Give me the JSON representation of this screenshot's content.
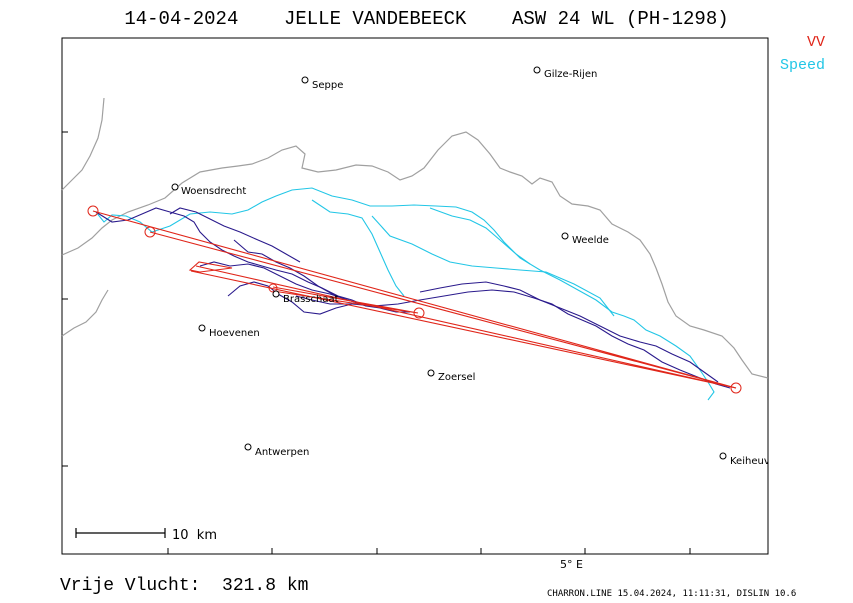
{
  "header": {
    "title": "14-04-2024    JELLE VANDEBEECK    ASW 24 WL (PH-1298)"
  },
  "legend": {
    "vv_label": "VV",
    "vv_color": "#e0261a",
    "speed_label": "Speed",
    "speed_color": "#22c6e6"
  },
  "places": [
    {
      "name": "Seppe"
    },
    {
      "name": "Gilze-Rijen"
    },
    {
      "name": "Woensdrecht"
    },
    {
      "name": "Weelde"
    },
    {
      "name": "Brasschaat"
    },
    {
      "name": "Hoevenen"
    },
    {
      "name": "Zoersel"
    },
    {
      "name": "Antwerpen"
    },
    {
      "name": "Keiheuvel"
    }
  ],
  "scale_bar": {
    "label": "10  km"
  },
  "axis": {
    "meridian_label": "5° E"
  },
  "footer": {
    "distance_text": "Vrije Vlucht:  321.8 km",
    "credit_text": "CHARRON.LINE 15.04.2024, 11:11:31, DISLIN 10.6"
  },
  "colors": {
    "border": "#a0a0a0",
    "track": "#2a1a8c",
    "task": "#e0261a",
    "speed": "#22c6e6"
  }
}
